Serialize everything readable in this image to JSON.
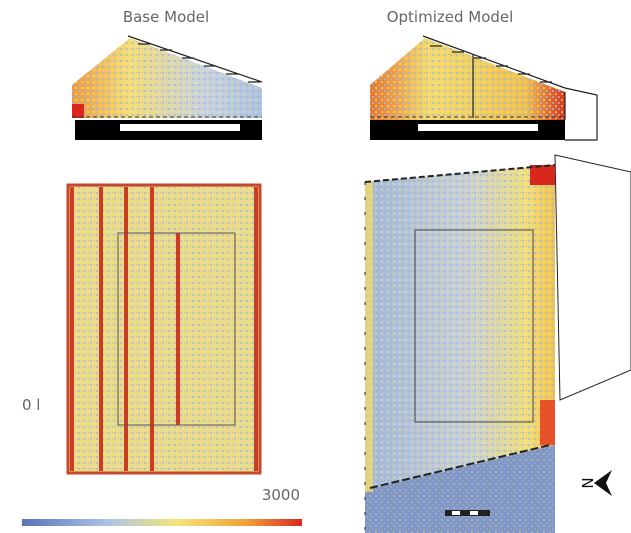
{
  "header": {
    "left_title": "Base Model",
    "right_title": "Optimized Model"
  },
  "legend": {
    "min_label": "0 l",
    "max_label": "3000"
  },
  "compass": {
    "label": "N"
  }
}
